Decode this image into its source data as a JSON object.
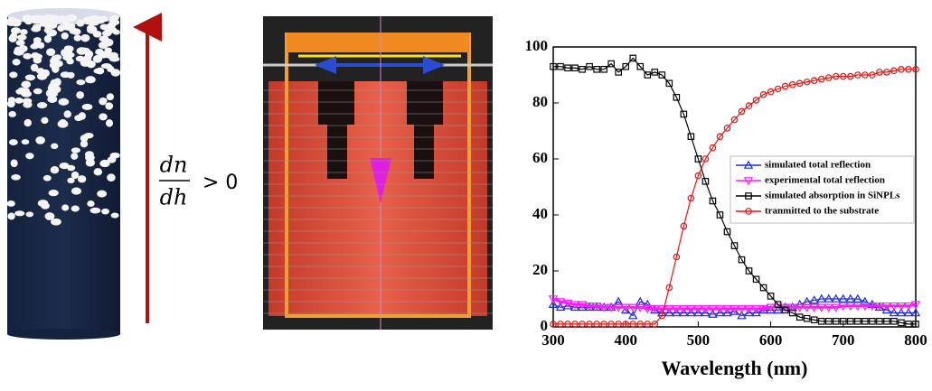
{
  "equation": {
    "numerator": "dn",
    "denominator": "dh",
    "relation": "> 0"
  },
  "chart_data": {
    "type": "line",
    "xlabel": "Wavelength (nm)",
    "xlim": [
      300,
      800
    ],
    "xticks": [
      300,
      400,
      500,
      600,
      700,
      800
    ],
    "ylim": [
      0,
      100
    ],
    "yticks": [
      0,
      20,
      40,
      60,
      80,
      100
    ],
    "x": [
      300,
      310,
      320,
      330,
      340,
      350,
      360,
      370,
      380,
      390,
      400,
      410,
      420,
      430,
      440,
      450,
      460,
      470,
      480,
      490,
      500,
      510,
      520,
      530,
      540,
      550,
      560,
      570,
      580,
      590,
      600,
      610,
      620,
      630,
      640,
      650,
      660,
      670,
      680,
      690,
      700,
      710,
      720,
      730,
      740,
      750,
      760,
      770,
      780,
      790,
      800
    ],
    "series": [
      {
        "name": "simulated total reflection",
        "color": "#1a2bd8",
        "marker": "triangle-up",
        "values": [
          8,
          7,
          7.5,
          7,
          7,
          7,
          7,
          7,
          7,
          9,
          6,
          4,
          9,
          8,
          6,
          5,
          5,
          5,
          5,
          5,
          5,
          5,
          4.5,
          5,
          5,
          5.5,
          4,
          5,
          5,
          6,
          6,
          6,
          7,
          7,
          8,
          9,
          9.5,
          10,
          10,
          10,
          10,
          10,
          10,
          9,
          8,
          7,
          6,
          5,
          5,
          5,
          5
        ]
      },
      {
        "name": "experimental total reflection",
        "color": "#ff1aff",
        "marker": "triangle-down",
        "values": [
          10,
          9,
          8.5,
          8,
          8,
          7.5,
          7.5,
          7,
          7,
          7,
          7,
          7,
          7,
          6.5,
          6.5,
          6.5,
          6.5,
          6.5,
          6.5,
          6.5,
          6.5,
          6.5,
          6.5,
          6.5,
          6.5,
          6.5,
          6.5,
          6.5,
          6.5,
          6.5,
          7,
          7,
          7,
          7,
          7,
          7,
          7,
          7,
          7,
          7,
          7.5,
          7.5,
          7.5,
          7.5,
          7.5,
          7.5,
          7.5,
          7.5,
          7.5,
          7.5,
          8
        ]
      },
      {
        "name": "simulated absorption in SiNPLs",
        "color": "#000000",
        "marker": "square",
        "values": [
          93,
          93,
          92.5,
          92.5,
          92,
          93,
          92,
          92,
          94,
          91,
          93,
          96,
          93,
          90,
          91,
          90,
          87,
          82,
          76,
          68,
          60,
          52,
          45,
          40,
          34,
          29,
          24,
          20,
          17,
          14,
          11,
          8,
          6,
          5,
          3.5,
          3,
          2.5,
          2,
          2,
          2,
          2,
          2,
          2,
          2,
          2,
          2,
          2,
          2,
          1.5,
          1,
          1
        ]
      },
      {
        "name": "tranmitted to the substrate",
        "color": "#ee1111",
        "marker": "circle",
        "values": [
          1,
          1,
          1,
          1,
          1,
          1,
          1,
          1,
          1,
          1,
          1,
          1,
          1,
          1,
          1,
          4,
          14,
          25,
          36,
          46,
          54,
          60,
          64,
          68,
          71,
          74,
          77,
          79,
          81,
          83,
          84,
          85,
          86,
          86.5,
          87,
          87.5,
          88,
          88.5,
          89,
          89.5,
          89.5,
          89.5,
          90,
          90,
          90,
          91,
          91,
          91.5,
          92,
          92,
          92
        ]
      }
    ]
  }
}
